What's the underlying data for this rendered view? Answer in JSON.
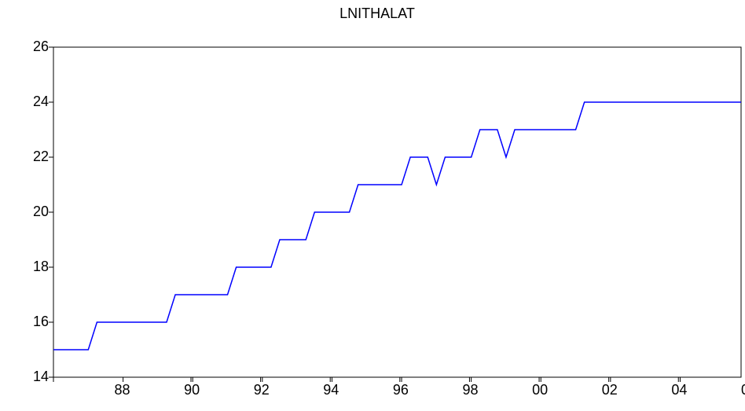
{
  "chart_data": {
    "type": "line",
    "title": "LNITHALAT",
    "x": [
      1988,
      1988.25,
      1988.5,
      1988.75,
      1989,
      1989.25,
      1989.5,
      1989.75,
      1990,
      1990.25,
      1990.5,
      1990.75,
      1991,
      1991.25,
      1991.5,
      1991.75,
      1992,
      1992.25,
      1992.5,
      1992.75,
      1993,
      1993.25,
      1993.5,
      1993.75,
      1994,
      1994.25,
      1994.5,
      1994.75,
      1995,
      1995.25,
      1995.5,
      1995.75,
      1996,
      1996.25,
      1996.5,
      1996.75,
      1997,
      1997.25,
      1997.5,
      1997.75,
      1998,
      1998.25,
      1998.5,
      1998.75,
      1999,
      1999.25,
      1999.5,
      1999.75,
      2000,
      2000.25,
      2000.5,
      2000.75,
      2001,
      2001.25,
      2001.5,
      2001.75,
      2002,
      2002.25,
      2002.5,
      2002.75,
      2003,
      2003.25,
      2003.5,
      2003.75,
      2004,
      2004.25,
      2004.5,
      2004.75,
      2005,
      2005.25,
      2005.5,
      2005.75,
      2006,
      2006.25,
      2006.5,
      2006.75,
      2007,
      2007.25,
      2007.5,
      2007.75
    ],
    "series": [
      {
        "name": "LNITHALAT",
        "color": "#0000ff",
        "values": [
          15,
          15,
          15,
          15,
          15,
          16,
          16,
          16,
          16,
          16,
          16,
          16,
          16,
          16,
          17,
          17,
          17,
          17,
          17,
          17,
          17,
          18,
          18,
          18,
          18,
          18,
          19,
          19,
          19,
          19,
          20,
          20,
          20,
          20,
          20,
          21,
          21,
          21,
          21,
          21,
          21,
          22,
          22,
          22,
          21,
          22,
          22,
          22,
          22,
          23,
          23,
          23,
          22,
          23,
          23,
          23,
          23,
          23,
          23,
          23,
          23,
          24,
          24,
          24,
          24,
          24,
          24,
          24,
          24,
          24,
          24,
          24,
          24,
          24,
          24,
          24,
          24,
          24,
          24,
          24
        ]
      }
    ],
    "xlim": [
      1988,
      2007.75
    ],
    "xticks": [
      {
        "value": 1988,
        "label": "88"
      },
      {
        "value": 1990,
        "label": "90"
      },
      {
        "value": 1992,
        "label": "92"
      },
      {
        "value": 1994,
        "label": "94"
      },
      {
        "value": 1996,
        "label": "96"
      },
      {
        "value": 1998,
        "label": "98"
      },
      {
        "value": 2000,
        "label": "00"
      },
      {
        "value": 2002,
        "label": "02"
      },
      {
        "value": 2004,
        "label": "04"
      },
      {
        "value": 2006,
        "label": "06"
      }
    ],
    "ylim": [
      14,
      26
    ],
    "yticks": [
      14,
      16,
      18,
      20,
      22,
      24,
      26
    ]
  }
}
